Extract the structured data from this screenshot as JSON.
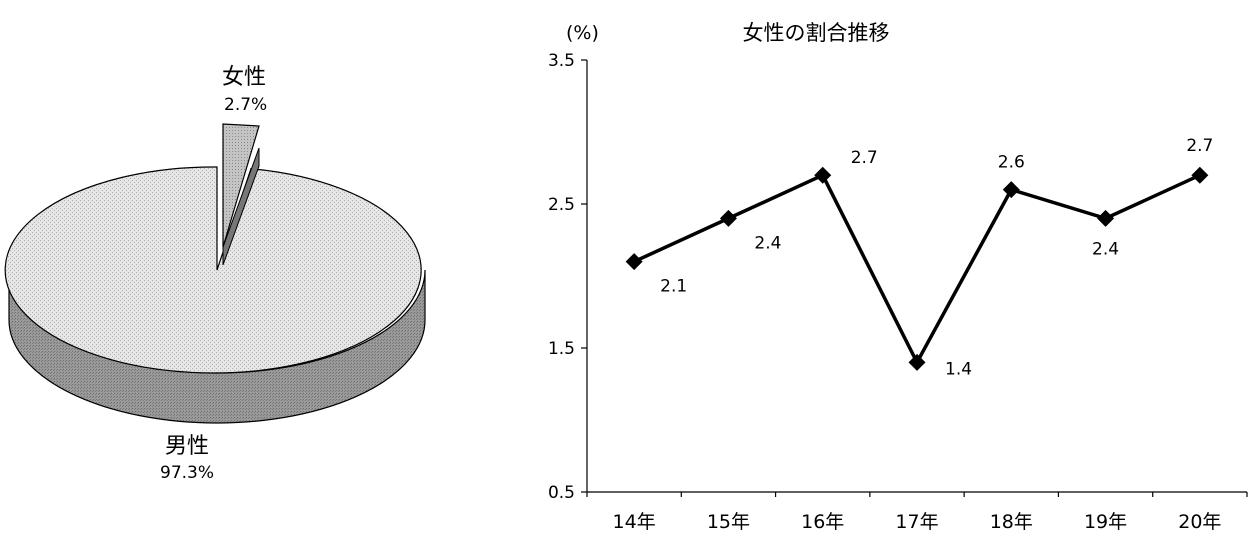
{
  "chart_data": [
    {
      "type": "pie",
      "style": "3d-exploded",
      "slices": [
        {
          "label": "男性",
          "value": 97.3,
          "value_label": "97.3%",
          "color": "#d8d8d8"
        },
        {
          "label": "女性",
          "value": 2.7,
          "value_label": "2.7%",
          "color": "#b4b4b4",
          "exploded": true
        }
      ]
    },
    {
      "type": "line",
      "title": "女性の割合推移",
      "ylabel": "(%)",
      "categories": [
        "14年",
        "15年",
        "16年",
        "17年",
        "18年",
        "19年",
        "20年"
      ],
      "series": [
        {
          "values": [
            2.1,
            2.4,
            2.7,
            1.4,
            2.6,
            2.4,
            2.7
          ],
          "marker": "diamond"
        }
      ],
      "data_labels": [
        "2.1",
        "2.4",
        "2.7",
        "1.4",
        "2.6",
        "2.4",
        "2.7"
      ],
      "ylim": [
        0.5,
        3.5
      ],
      "yticks": [
        0.5,
        1.5,
        2.5,
        3.5
      ],
      "ytick_labels": [
        "0.5",
        "1.5",
        "2.5",
        "3.5"
      ],
      "grid": false,
      "line_color": "#000000"
    }
  ]
}
